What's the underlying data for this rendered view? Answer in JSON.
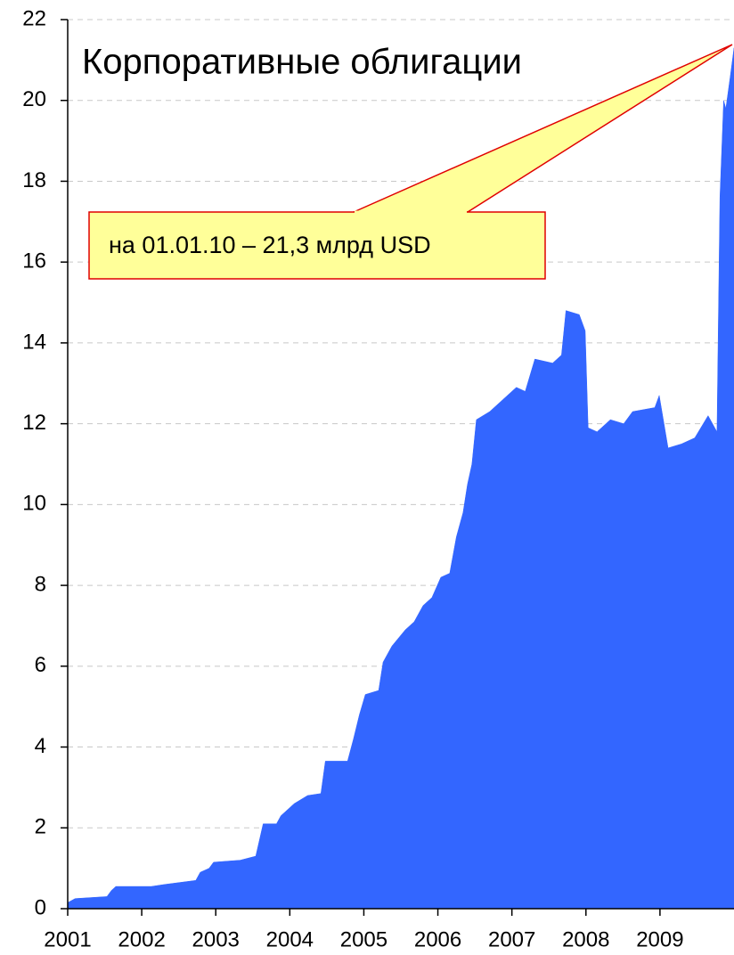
{
  "chart_data": {
    "type": "area",
    "title": "Корпоративные облигации",
    "annotation": "на 01.01.10 – 21,3 млрд USD",
    "color": "#3366ff",
    "grid": true,
    "xlim": [
      2001,
      2010
    ],
    "xticks": [
      2001,
      2002,
      2003,
      2004,
      2005,
      2006,
      2007,
      2008,
      2009
    ],
    "ylim": [
      0,
      22
    ],
    "yticks": [
      0,
      2,
      4,
      6,
      8,
      10,
      12,
      14,
      16,
      18,
      20,
      22
    ],
    "x": [
      2001.0,
      2001.1,
      2001.53,
      2001.59,
      2001.65,
      2002.13,
      2002.31,
      2002.73,
      2002.79,
      2002.91,
      2002.97,
      2003.33,
      2003.54,
      2003.64,
      2003.82,
      2003.88,
      2004.06,
      2004.24,
      2004.42,
      2004.48,
      2004.78,
      2004.86,
      2004.94,
      2005.02,
      2005.2,
      2005.26,
      2005.38,
      2005.56,
      2005.68,
      2005.8,
      2005.92,
      2006.04,
      2006.16,
      2006.25,
      2006.34,
      2006.4,
      2006.46,
      2006.52,
      2006.7,
      2006.88,
      2007.06,
      2007.18,
      2007.31,
      2007.55,
      2007.67,
      2007.73,
      2007.91,
      2007.99,
      2008.03,
      2008.15,
      2008.33,
      2008.51,
      2008.63,
      2008.93,
      2008.99,
      2009.11,
      2009.29,
      2009.47,
      2009.65,
      2009.77,
      2009.81,
      2009.86,
      2009.89,
      2009.95,
      2010.0
    ],
    "values": [
      0.15,
      0.25,
      0.3,
      0.45,
      0.55,
      0.55,
      0.6,
      0.7,
      0.9,
      1.0,
      1.15,
      1.2,
      1.3,
      2.1,
      2.1,
      2.3,
      2.6,
      2.8,
      2.85,
      3.65,
      3.65,
      4.2,
      4.8,
      5.3,
      5.4,
      6.1,
      6.5,
      6.9,
      7.1,
      7.5,
      7.7,
      8.2,
      8.3,
      9.2,
      9.8,
      10.5,
      11.0,
      12.1,
      12.3,
      12.6,
      12.9,
      12.8,
      13.6,
      13.5,
      13.7,
      14.8,
      14.7,
      14.3,
      11.9,
      11.8,
      12.1,
      12.0,
      12.3,
      12.4,
      12.7,
      11.4,
      11.5,
      11.65,
      12.2,
      11.8,
      17.6,
      20.0,
      19.8,
      20.6,
      21.3
    ]
  }
}
